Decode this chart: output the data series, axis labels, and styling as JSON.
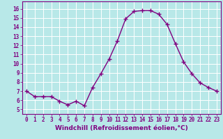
{
  "x": [
    0,
    1,
    2,
    3,
    4,
    5,
    6,
    7,
    8,
    9,
    10,
    11,
    12,
    13,
    14,
    15,
    16,
    17,
    18,
    19,
    20,
    21,
    22,
    23
  ],
  "y": [
    7.0,
    6.4,
    6.4,
    6.4,
    5.9,
    5.5,
    5.9,
    5.4,
    7.4,
    8.9,
    10.5,
    12.5,
    14.9,
    15.7,
    15.8,
    15.8,
    15.4,
    14.3,
    12.2,
    10.2,
    8.9,
    7.9,
    7.4,
    7.0
  ],
  "line_color": "#800080",
  "marker": "+",
  "marker_size": 4,
  "line_width": 1.0,
  "xlabel": "Windchill (Refroidissement éolien,°C)",
  "xlabel_fontsize": 6.5,
  "ylim": [
    4.5,
    16.8
  ],
  "xlim": [
    -0.5,
    23.5
  ],
  "yticks": [
    5,
    6,
    7,
    8,
    9,
    10,
    11,
    12,
    13,
    14,
    15,
    16
  ],
  "xticks": [
    0,
    1,
    2,
    3,
    4,
    5,
    6,
    7,
    8,
    9,
    10,
    11,
    12,
    13,
    14,
    15,
    16,
    17,
    18,
    19,
    20,
    21,
    22,
    23
  ],
  "background_color": "#b8e8e8",
  "grid_color": "#ffffff",
  "tick_color": "#800080",
  "tick_fontsize": 5.5,
  "spine_color": "#800080"
}
